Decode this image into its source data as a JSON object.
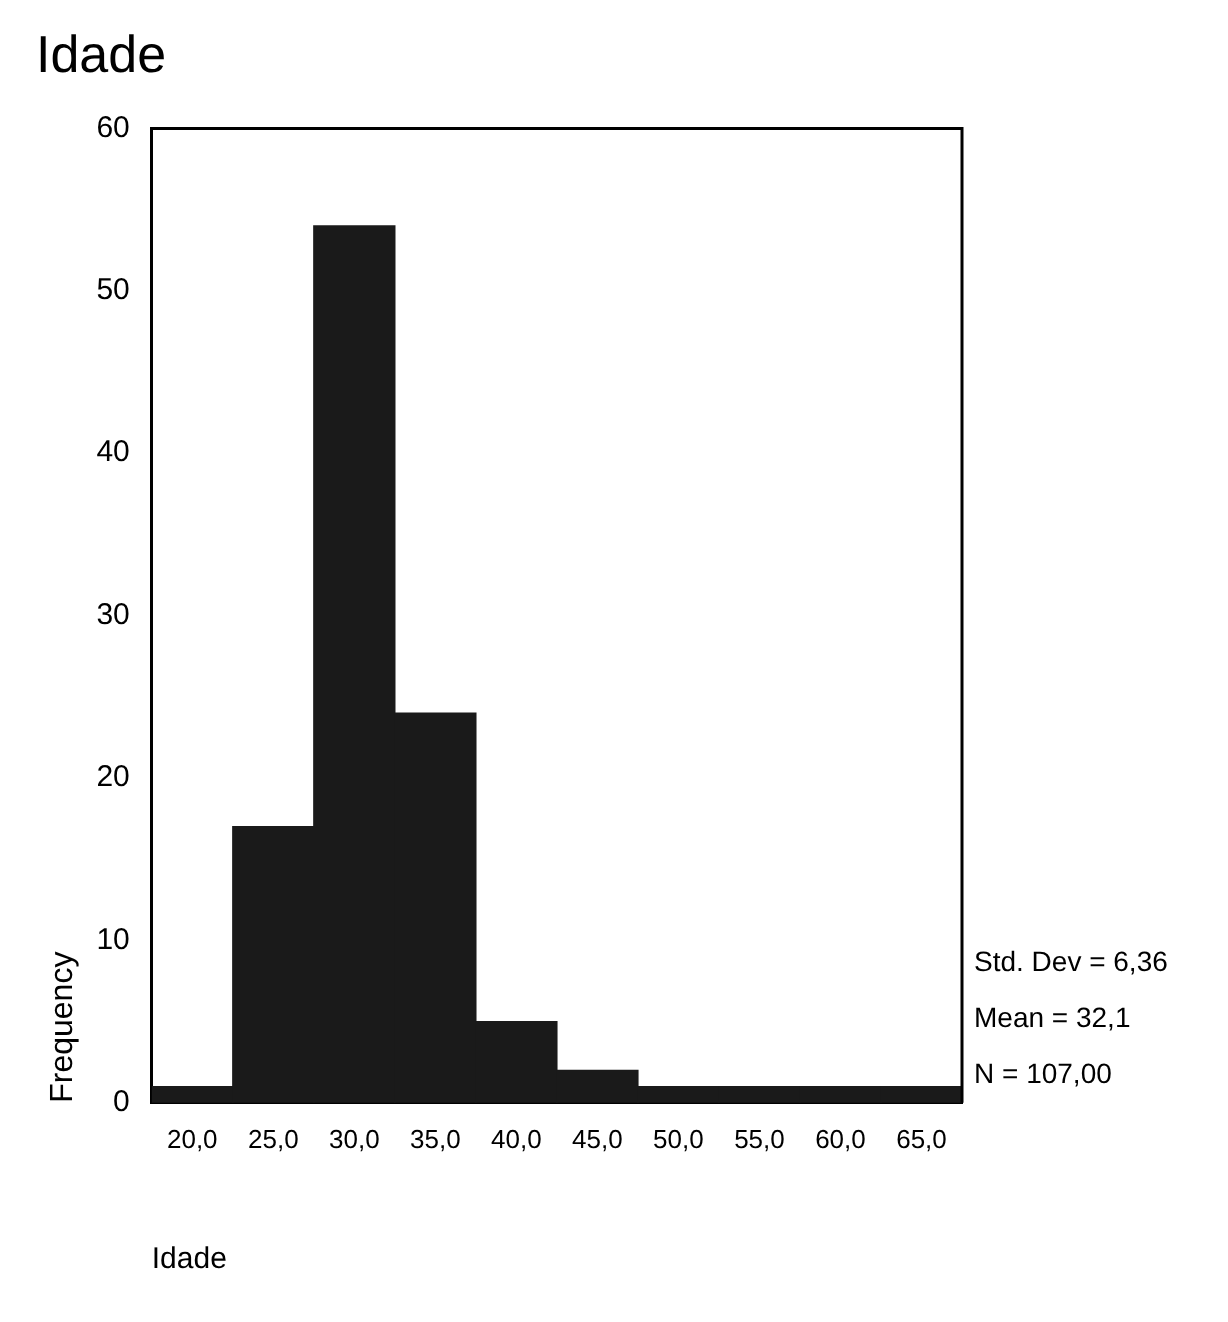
{
  "chart_data": {
    "type": "histogram",
    "title": "Idade",
    "xlabel": "Idade",
    "ylabel": "Frequency",
    "bins": [
      17.5,
      22.5,
      27.5,
      32.5,
      37.5,
      42.5,
      47.5,
      52.5,
      57.5,
      62.5,
      67.5
    ],
    "values": [
      1,
      17,
      54,
      24,
      5,
      2,
      1,
      1,
      1,
      1
    ],
    "color": "#1a1a1a",
    "xlim": [
      17.5,
      67.5
    ],
    "xticks": [
      {
        "value": 20,
        "label": "20,0"
      },
      {
        "value": 25,
        "label": "25,0"
      },
      {
        "value": 30,
        "label": "30,0"
      },
      {
        "value": 35,
        "label": "35,0"
      },
      {
        "value": 40,
        "label": "40,0"
      },
      {
        "value": 45,
        "label": "45,0"
      },
      {
        "value": 50,
        "label": "50,0"
      },
      {
        "value": 55,
        "label": "55,0"
      },
      {
        "value": 60,
        "label": "60,0"
      },
      {
        "value": 65,
        "label": "65,0"
      }
    ],
    "ylim": [
      0,
      60
    ],
    "yticks": [
      0,
      10,
      20,
      30,
      40,
      50,
      60
    ],
    "grid": false,
    "legend": false,
    "annotations": [
      "Std. Dev = 6,36",
      "Mean = 32,1",
      "N = 107,00"
    ]
  }
}
